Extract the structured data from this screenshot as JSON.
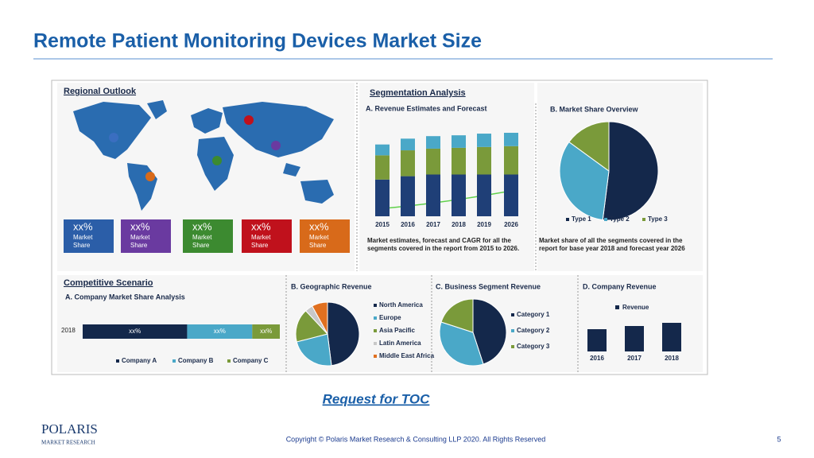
{
  "title": "Remote Patient Monitoring Devices Market Size",
  "toc_link": "Request for TOC",
  "logo": {
    "name": "POLARIS",
    "tagline": "MARKET RESEARCH"
  },
  "footer": {
    "copyright": "Copyright © Polaris Market Research & Consulting LLP 2020. All Rights Reserved",
    "page": "5"
  },
  "regional": {
    "title": "Regional Outlook",
    "tiles": [
      {
        "value": "xx%",
        "label": "Market Share",
        "color": "#2b5ea8"
      },
      {
        "value": "xx%",
        "label": "Market Share",
        "color": "#6a3aa0"
      },
      {
        "value": "xx%",
        "label": "Market Share",
        "color": "#3c8a30"
      },
      {
        "value": "xx%",
        "label": "Market Share",
        "color": "#c0111c"
      },
      {
        "value": "xx%",
        "label": "Market Share",
        "color": "#d86a1a"
      }
    ]
  },
  "segmentation": {
    "title": "Segmentation Analysis",
    "revenue": {
      "type": "bar",
      "title": "A. Revenue Estimates and Forecast",
      "categories": [
        "2015",
        "2016",
        "2017",
        "2018",
        "2019",
        "2026"
      ],
      "series": [
        {
          "color": "#1f3f77",
          "values": [
            44,
            48,
            50,
            50,
            50,
            50
          ]
        },
        {
          "color": "#7a9a3a",
          "values": [
            29,
            31,
            31,
            32,
            33,
            34
          ]
        },
        {
          "color": "#4aa8c8",
          "values": [
            13,
            14,
            15,
            15,
            16,
            16
          ]
        }
      ],
      "caption": "Market estimates, forecast and CAGR for all the segments covered in the report from 2015 to 2026."
    },
    "share": {
      "type": "pie",
      "title": "B. Market Share Overview",
      "categories": [
        "Type 1",
        "Type 2",
        "Type 3"
      ],
      "values": [
        52,
        33,
        15
      ],
      "colors": [
        "#14284b",
        "#4aa8c8",
        "#7a9a3a"
      ],
      "caption": "Market share of all the segments covered in the report for base year 2018 and forecast year 2026"
    }
  },
  "competitive": {
    "title": "Competitive Scenario",
    "company_share": {
      "type": "bar",
      "title": "A. Company Market Share Analysis",
      "categories": [
        "2018"
      ],
      "series": [
        {
          "name": "Company A",
          "color": "#14284b",
          "values": [
            53
          ],
          "value_labels": [
            "xx%"
          ]
        },
        {
          "name": "Company B",
          "color": "#4aa8c8",
          "values": [
            33
          ],
          "value_labels": [
            "xx%"
          ]
        },
        {
          "name": "Company C",
          "color": "#7a9a3a",
          "values": [
            14
          ],
          "value_labels": [
            "xx%"
          ]
        }
      ]
    },
    "geographic": {
      "type": "pie",
      "title": "B. Geographic Revenue",
      "categories": [
        "North America",
        "Europe",
        "Asia Pacific",
        "Latin America",
        "Middle East Africa"
      ],
      "values": [
        48,
        23,
        17,
        4,
        8
      ],
      "colors": [
        "#14284b",
        "#4aa8c8",
        "#7a9a3a",
        "#c8c8c8",
        "#e07020"
      ]
    },
    "business": {
      "type": "pie",
      "title": "C. Business Segment Revenue",
      "categories": [
        "Category 1",
        "Category 2",
        "Category 3"
      ],
      "values": [
        45,
        35,
        20
      ],
      "colors": [
        "#14284b",
        "#4aa8c8",
        "#7a9a3a"
      ]
    },
    "company_revenue": {
      "type": "bar",
      "title": "D. Company Revenue",
      "legend": "Revenue",
      "categories": [
        "2016",
        "2017",
        "2018"
      ],
      "values": [
        28,
        32,
        36
      ],
      "color": "#14284b"
    }
  }
}
